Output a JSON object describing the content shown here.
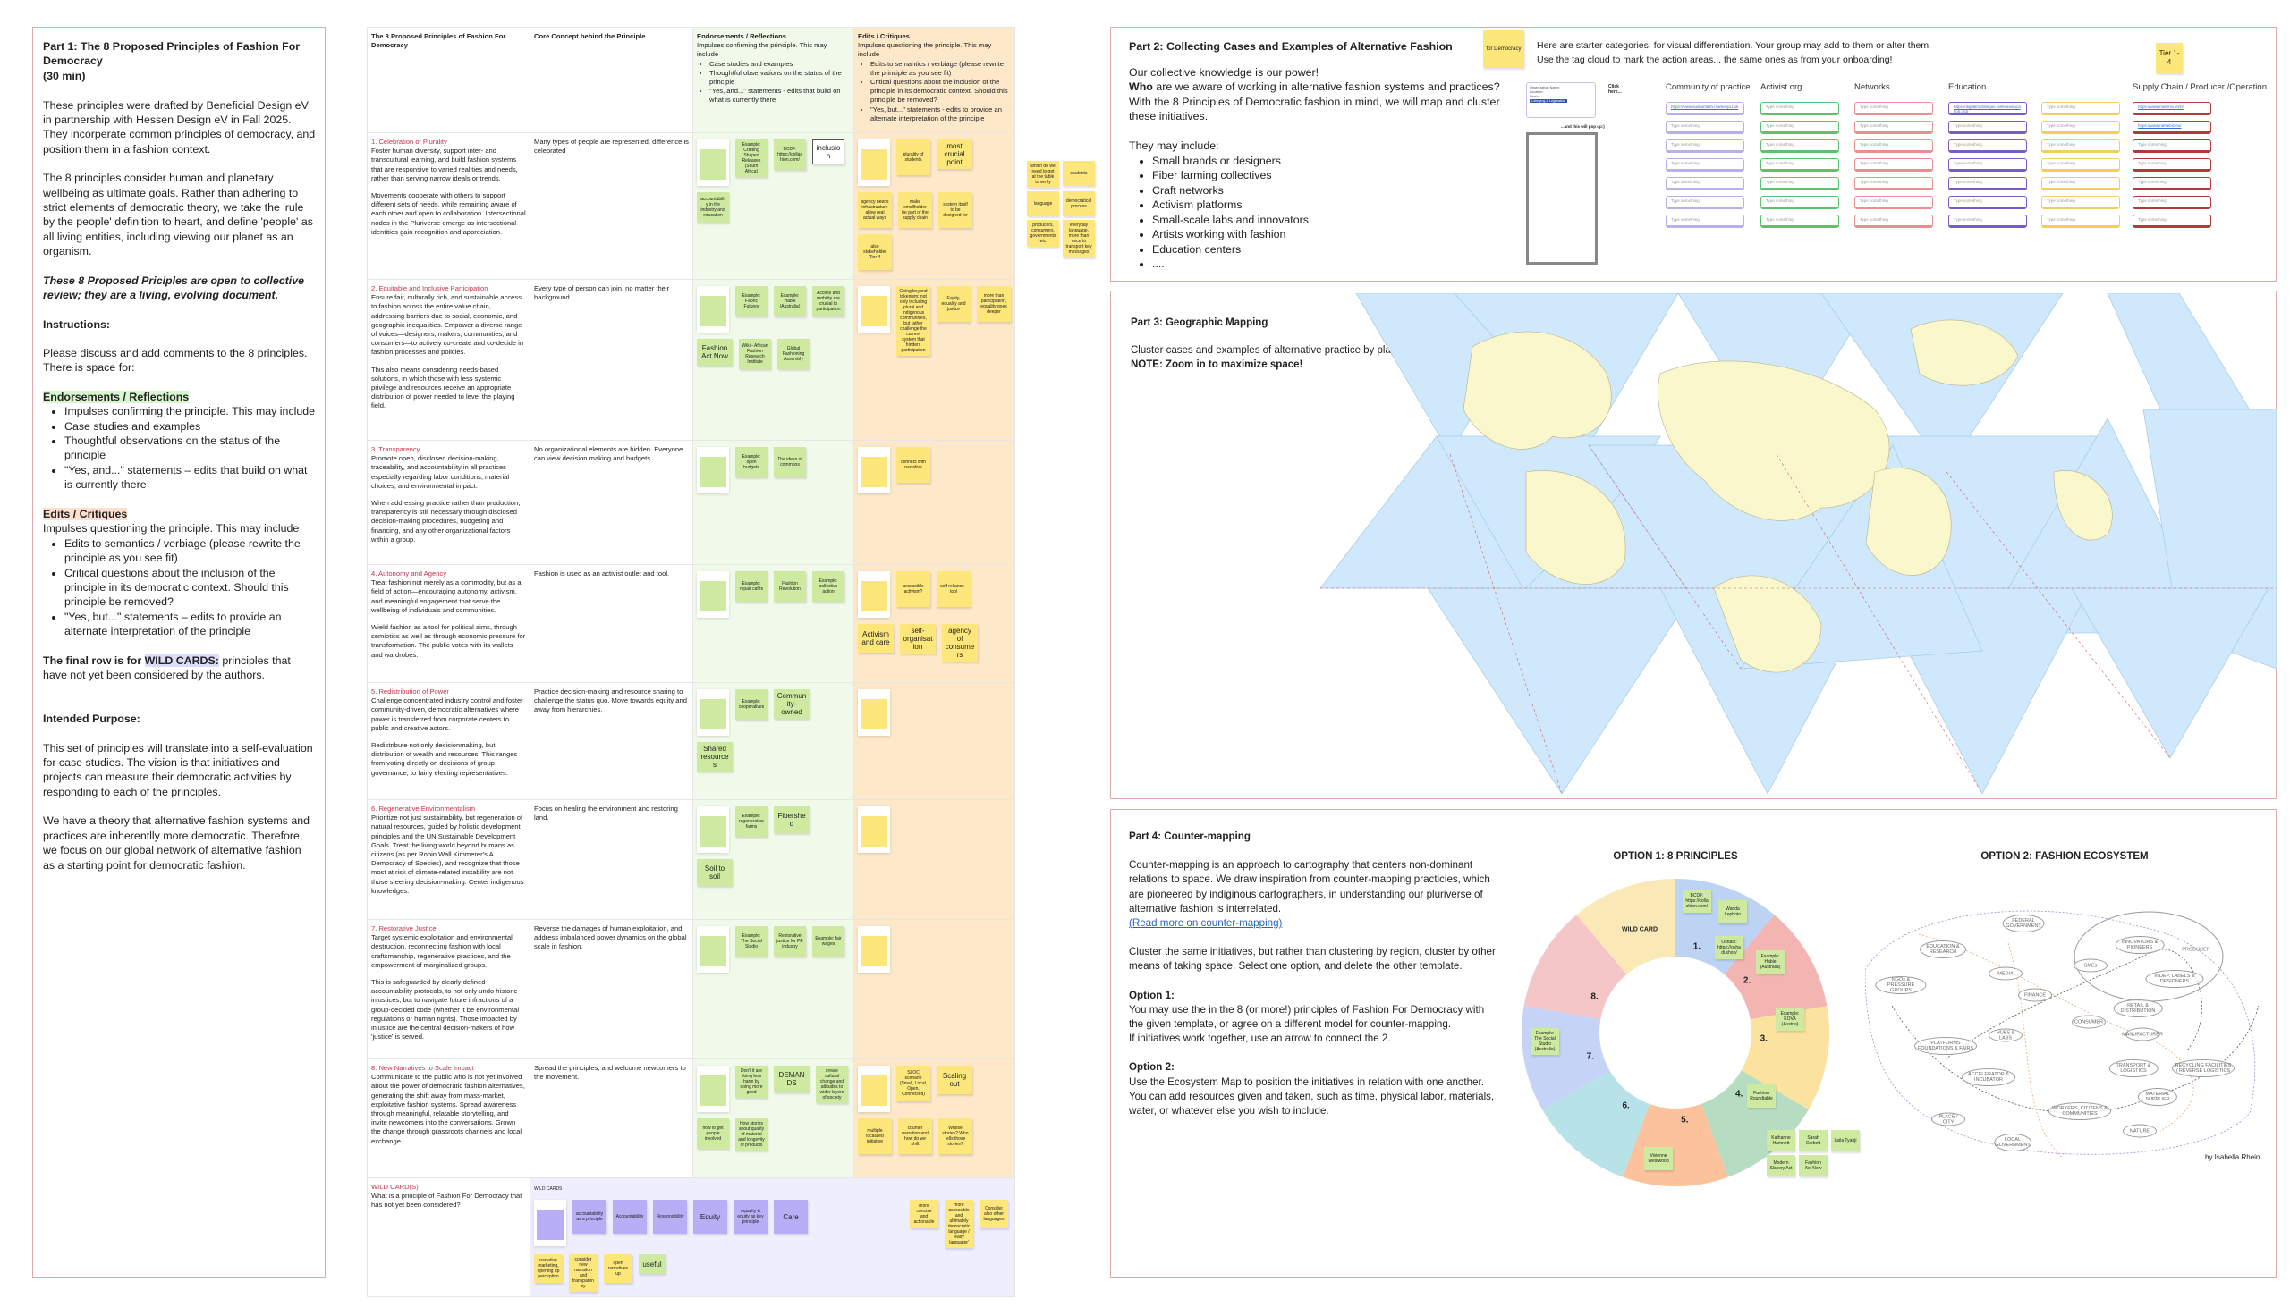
{
  "part1": {
    "title": "Part 1: The 8 Proposed Principles of Fashion For Democracy",
    "duration": "(30 min)",
    "intro1": "These principles were drafted by Beneficial Design eV in partnership with Hessen Design eV in Fall 2025. They incorperate common principles of democracy, and position them in a fashion context.",
    "intro2": "The 8 principles consider human and planetary wellbeing as ultimate goals. Rather than adhering to strict elements of democratic theory, we take the 'rule by the people' definition to heart, and define 'people' as all living entities, including viewing our planet as an organism.",
    "note": "These 8 Proposed Priciples are open to collective review; they are a living, evolving document.",
    "instructions_heading": "Instructions:",
    "instructions": "Please discuss and add comments to the 8 principles. There is space for:",
    "endorse_heading": "Endorsements / Reflections",
    "endorse_items": [
      "Impulses confirming the principle. This may include",
      "Case studies and examples",
      "Thoughtful observations on the status of the principle",
      "\"Yes, and...\" statements – edits that build on what is currently there"
    ],
    "edits_heading": "Edits / Critiques",
    "edits_intro": "Impulses questioning the principle. This may include",
    "edits_items": [
      "Edits to semantics / verbiage (please rewrite the principle as you see fit)",
      "Critical questions about the inclusion of the principle in its democratic context. Should this principle be removed?",
      "\"Yes, but...\" statements – edits to provide an alternate interpretation of the principle"
    ],
    "final_row_bold": "The final row is for",
    "final_row_hl": "WILD CARDS:",
    "final_row_rest": "principles that have not yet been considered by the authors.",
    "purpose_heading": "Intended Purpose:",
    "purpose1": "This set of principles will translate into a self-evaluation for case studies. The vision is that initiatives and projects can measure their democratic activities by responding to each of the principles.",
    "purpose2": "We have a theory that alternative fashion systems and practices are inherentlly more democratic. Therefore, we focus on our global network of alternative fashion as a starting point for democratic fashion."
  },
  "table": {
    "headers": {
      "principles": "The 8 Proposed Principles of Fashion For Democracy",
      "core": "Core Concept behind the Principle",
      "endorse_title": "Endorsements / Reflections",
      "endorse_intro": "Impulses confirming the principle. This may include",
      "endorse_items": [
        "Case studies and examples",
        "Thoughtful observations on the status of the principle",
        "\"Yes, and...\" statements - edits that build on what is currently there"
      ],
      "edits_title": "Edits / Critiques",
      "edits_intro": "Impulses questioning the principle. This may include",
      "edits_items": [
        "Edits to semantics / verbiage (please rewrite the principle as you see fit)",
        "Critical questions about the inclusion of the principle in its democratic context. Should this principle be removed?",
        "\"Yes, but...\" statements - edits to provide an alternate interpretation of the principle"
      ]
    },
    "rows": [
      {
        "title": "1. Celebration of Plurality",
        "body": [
          "Foster human diversity, support inter- and transcultural learning, and build fashion systems that are responsive to varied realities and needs, rather than serving narrow ideals or trends.",
          "Movements cooperate with others to support different sets of needs, while remaining aware of each other and open to collaboration. Intersectional nodes in the Pluriverse emerge as intersectional identities gain recognition and appreciation."
        ],
        "core": "Many types of people are represented, difference is celebrated",
        "endorse": [
          "Example: Crafting Shaped Releases (South Africa)",
          "BCDF: https://collashion.com/",
          "inclusion",
          "accountability in the industry and education"
        ],
        "critique": [
          "plurality of students",
          "most crucial point",
          "agency needs infrastructure allow real actual ways",
          "make smallholder be part of the supply chain",
          "system itself to be designed for",
          "also stakeholder Tier 4"
        ]
      },
      {
        "title": "2. Equitable and Inclusive Participation",
        "body": [
          "Ensure fair, culturally rich, and sustainable access to fashion across the entire value chain, addressing barriers due to social, economic, and geographic inequalities. Empower a diverse range of voices—designers, makers, communities, and consumers—to actively co-create and co-decide in fashion processes and policies.",
          "This also means considering needs-based solutions, in which those with less systemic privilege and resources receive an appropriate distribution of power needed to level the playing field."
        ],
        "core": "Every type of person can join, no matter their background",
        "endorse": [
          "Example: Fabric Futures",
          "Example: Hable (Australia)",
          "Access and mobility are crucial to participation",
          "Fashion Act Now",
          "Wiki - African Fashion Research Institute",
          "Global Fashioning Assembly"
        ],
        "critique": [
          "Going beyond tokenism: not only including plural and indigenous communities, but rather challenge the current system that hinders participation",
          "Equity, equality and justice",
          "more than participation, equality goes deeper"
        ]
      },
      {
        "title": "3. Transparency",
        "body": [
          "Promote open, disclosed decision-making, traceability, and accountability in all practices—especially regarding labor conditions, material choices, and environmental impact.",
          "When addressing practice rather than production, transparency is still necessary through disclosed decision-making procedures, budgeting and financing, and any other organizational factors within a group."
        ],
        "core": "No organizational elements are hidden. Everyone can view decision making and budgets.",
        "endorse": [
          "Example: open budgets",
          "The ideas of commons"
        ],
        "critique": [
          "connect with narrative"
        ]
      },
      {
        "title": "4. Autonomy and Agency",
        "body": [
          "Treat fashion not merely as a commodity, but as a field of action—encouraging autonomy, activism, and meaningful engagement that serve the wellbeing of individuals and communities.",
          "Wield fashion as a tool for political aims, through semiotics as well as through economic pressure for transformation. The public votes with its wallets and wardrobes."
        ],
        "core": "Fashion is used as an activist outlet and tool.",
        "endorse": [
          "Example: repair cafés",
          "Fashion Revolution",
          "Example: collective action"
        ],
        "critique": [
          "accessible activism?",
          "self reliance - tool",
          "Activism and care",
          "self-organisation",
          "agency of consumers"
        ]
      },
      {
        "title": "5. Redistribution of Power",
        "body": [
          "Challenge concentrated industry control and foster community-driven, democratic alternatives where power is transferred from corporate centers to public and creative actors.",
          "Redistribute not only decisionmaking, but distribution of wealth and resources. This ranges from voting directly on decisions of group governance, to fairly electing representatives."
        ],
        "core": "Practice decision-making and resource sharing to challenge the status quo. Move towards equity and away from hierarchies.",
        "endorse": [
          "Example: cooperatives",
          "Community-owned",
          "Shared resources"
        ],
        "critique": []
      },
      {
        "title": "6. Regenerative Environmentalism",
        "body": [
          "Prioritize not just sustainability, but regeneration of natural resources, guided by holistic development principles and the UN Sustainable Development Goals. Treat the living world beyond humans as citizens (as per Robin Wall Kimmerer's A Democracy of Species), and recognize that those most at risk of climate-related instability are not those steering decision-making. Center indigenous knowledges."
        ],
        "core": "Focus on healing the environment and restoring land.",
        "endorse": [
          "Example: regenerative farms",
          "Fibershed",
          "Soil to soil"
        ],
        "critique": []
      },
      {
        "title": "7. Restorative Justice",
        "body": [
          "Target systemic exploitation and environmental destruction, reconnecting fashion with local craftsmanship, regenerative practices, and the empowerment of marginalized groups.",
          "This is safeguarded by clearly defined accountability protocols, to not only undo historic injustices, but to navigate future infractions of a group-decided code (whether it be environmental regulations or human rights). Those impacted by injustice are the central decision-makers of how 'justice' is served."
        ],
        "core": "Reverse the damages of human exploitation, and address imbalanced power dynamics on the global scale in fashion.",
        "endorse": [
          "Example: The Social Studio",
          "Restorative justice for PE industry",
          "Example: fair wages"
        ],
        "critique": []
      },
      {
        "title": "8. New Narratives to Scale Impact",
        "body": [
          "Communicate to the public who is not yet involved about the power of democratic fashion alternatives, generating the shift away from mass-market, exploitative fashion systems. Spread awareness through meaningful, relatable storytelling, and invite newcomers into the conversations. Grown the change through grassroots channels and local exchange."
        ],
        "core": "Spread the principles, and welcome newcomers to the movement.",
        "endorse": [
          "Don't it are doing less harm by doing more good",
          "DEMANDS",
          "create cultural change and attitudes to wider layers of society",
          "how to get people involved",
          "How stories about quality of material and longevity of products"
        ],
        "critique": [
          "SLOC scenario (Small, Local, Open, Connected)",
          "Scaling out",
          "multiple localized initiative",
          "counter narration and how do we shift",
          "Whose stories? Who tells those stories?"
        ]
      }
    ],
    "wildcard": {
      "title": "WILD CARD(S)",
      "question": "What is a principle of Fashion For Democracy that has not yet been considered?",
      "template_label": "WILD CARDS",
      "purple": [
        "accountability as a principle",
        "Accountability",
        "Responsibility",
        "Equity",
        "equality & equity as key principle",
        "Care"
      ],
      "yellow": [
        "more concise and actionable",
        "more accessible and ultimately democratic language / 'easy language'",
        "Consider also other languages",
        "narrative marketing, opening up perception",
        "consider new narration and transparency",
        "open narratives up"
      ],
      "green": [
        "useful"
      ]
    }
  },
  "side_stickies": [
    "which do we need to get at the table to verify",
    "students",
    "language",
    "democratical process",
    "producers, consumers, governments etc",
    "everyday language, more than once to transport key messages"
  ],
  "part2": {
    "title": "Part 2: Collecting Cases and Examples of Alternative Fashion",
    "sticky": "for Democracy",
    "line1": "Our collective knowledge is our power!",
    "who": "Who",
    "line2": "are we aware of working in alternative fashion systems and practices? With the 8 Principles of Democratic fashion in mind, we will map and cluster these initiatives.",
    "may_include": "They may include:",
    "items": [
      "Small brands or designers",
      "Fiber farming collectives",
      "Craft networks",
      "Activism platforms",
      "Small-scale labs and innovators",
      "Artists working with fashion",
      "Education centers",
      "...."
    ],
    "starter1": "Here are starter categories, for visual differentiation. Your group may add to them or alter them.",
    "starter2": "Use the tag cloud to mark the action areas... the same ones as from your onboarding!",
    "tier": "Tier 1-4",
    "widget": {
      "fields": [
        "Organization Name:",
        "Location:",
        "Sector:"
      ],
      "tag": "Lobbying & Legislation",
      "click": "Click here...",
      "popup": "...and this will pop up:)"
    },
    "columns": [
      {
        "label": "Community of practice",
        "color": "#b9b0ea",
        "cards": [
          "https://www.sustainfash.market/ja.t.uk",
          "Type something",
          "Type something",
          "Type something",
          "Type something",
          "Type something",
          "Type something"
        ]
      },
      {
        "label": "Activist org.",
        "color": "#5cc26f",
        "cards": [
          "Type something",
          "Type something",
          "Type something",
          "Type something",
          "Type something",
          "Type something",
          "Type something"
        ]
      },
      {
        "label": "Networks",
        "color": "#ea8f8f",
        "cards": [
          "Type something",
          "Type something",
          "Type something",
          "Type something",
          "Type something",
          "Type something",
          "Type something"
        ]
      },
      {
        "label": "Education",
        "color": "#7a5cc8",
        "cards": [
          "https://digitalmultilingue.fashioneducation.org/",
          "Type something",
          "Type something",
          "Type something",
          "Type something",
          "Type something",
          "Type something"
        ]
      },
      {
        "label": "",
        "color": "#f1cf5e",
        "cards": [
          "Type something",
          "Type something",
          "Type something",
          "Type something",
          "Type something",
          "Type something",
          "Type something"
        ]
      },
      {
        "label": "Supply Chain / Producer /Operation",
        "color": "#b33a3a",
        "cards": [
          "https://www.materra.tech/",
          "https://www.nettlebiz.eu/",
          "Type something",
          "Type something",
          "Type something",
          "Type something",
          "Type something"
        ]
      }
    ]
  },
  "part3": {
    "title": "Part 3: Geographic Mapping",
    "text": "Cluster cases and examples of alternative practice by place.",
    "note": "NOTE: Zoom in to maximize space!"
  },
  "part4": {
    "title": "Part 4: Counter-mapping",
    "p1": "Counter-mapping is an approach to cartography that centers non-dominant relations to space. We draw inspiration from counter-mapping practicies, which are pioneered by indiginous cartographers, in understanding our pluriverse of alternative fashion is interrelated.",
    "link": "(Read more on counter-mapping)",
    "p2": "Cluster the same initiatives, but rather than clustering by region, cluster by other means of taking space. Select one option, and delete the other template.",
    "opt1_h": "Option 1:",
    "opt1": "You may use the in the 8 (or more!) principles of Fashion For Democracy with the given template, or agree on a different model for counter-mapping.",
    "opt1b": "If initiatives work together, use an arrow to connect the 2.",
    "opt2_h": "Option 2:",
    "opt2": "Use the Ecosystem Map to position the initiatives in relation with one another. You can add resources given and taken, such as time, physical labor, materials, water, or whatever else you wish to include.",
    "option1_title": "OPTION 1: 8 PRINCIPLES",
    "option2_title": "OPTION 2: FASHION ECOSYSTEM",
    "credit": "by Isabella Rhein"
  },
  "chart_data": {
    "type": "pie",
    "title": "OPTION 1: 8 PRINCIPLES",
    "categories": [
      "1.",
      "2.",
      "3.",
      "4.",
      "5.",
      "6.",
      "7.",
      "8.",
      "WILD CARD"
    ],
    "values": [
      1,
      1,
      1,
      1,
      1,
      1,
      1,
      1,
      1
    ],
    "colors": [
      "#bcd3f4",
      "#f3b5b2",
      "#fbe29f",
      "#b6ddc2",
      "#fbc29c",
      "#b7e2e7",
      "#c4d3f6",
      "#f5c6c8",
      "#fbe8b7"
    ],
    "stickies": [
      "BCDF: https://collashion.com/",
      "Wanda Lephoto",
      "Oshadi: https://oshadi.shop/",
      "Example: Hable (Australia)",
      "Example: KOVA (Austria)",
      "Fashion Roundtable",
      "Example: The Social Studio (Australia)",
      "Vivienne Westwood",
      "Katharine Hamnett",
      "Sarah Corbett",
      "Laila Tyabji",
      "Modern Slavery Act",
      "Fashion Act Now"
    ]
  },
  "ecosystem": {
    "nodes": [
      "FEDERAL GOVERNMENT",
      "EDUCATION & RESEARCH",
      "NGOs & PRESSURE GROUPS",
      "MEDIA",
      "FINANCE",
      "SMEs",
      "INNOVATORS & PIONEERS",
      "PRODUCER",
      "INDEP. LABELS & DESIGNERS",
      "RETAIL & DISTRIBUTION",
      "CONSUMER",
      "MANUFACTURER",
      "HUBS & LABS",
      "PLATFORMS FOUNDATIONS & FAIRS",
      "ACCELERATOR & INCUBATOR",
      "TRANSPORT & LOGISTICS",
      "RECYCLING FACILITIES / REVERSE LOGISTICS",
      "MATERIAL SUPPLIER",
      "WORKERS, CITIZENS & COMMUNITIES",
      "NATURE",
      "PLACE / CITY",
      "LOCAL GOVERNMENT"
    ]
  }
}
